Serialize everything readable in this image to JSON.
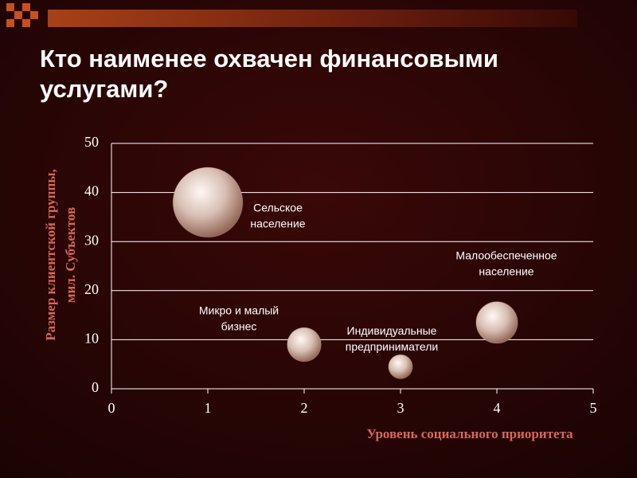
{
  "chart_data": {
    "type": "bubble",
    "title": [
      "Кто наименее охвачен финансовыми",
      "услугами?"
    ],
    "x_label": "Уровень социального приоритета",
    "y_label": [
      "Размер клиентской группы,",
      "мил. Субъектов"
    ],
    "x": [
      1,
      2,
      3,
      4
    ],
    "values": [
      38,
      9,
      4.5,
      13.5
    ],
    "sizes": [
      38,
      9,
      4.5,
      13.5
    ],
    "point_labels": [
      [
        "Сельское",
        "население"
      ],
      [
        "Микро и малый",
        "бизнес"
      ],
      [
        "Индивидуальные",
        "предприниматели"
      ],
      [
        "Малообеспеченное",
        "население"
      ]
    ],
    "color": "#d8bfb4",
    "xlim": [
      0,
      5
    ],
    "xticks": [
      0,
      1,
      2,
      3,
      4,
      5
    ],
    "ylim": [
      0,
      50
    ],
    "yticks": [
      0,
      10,
      20,
      30,
      40,
      50
    ],
    "grid": true
  }
}
